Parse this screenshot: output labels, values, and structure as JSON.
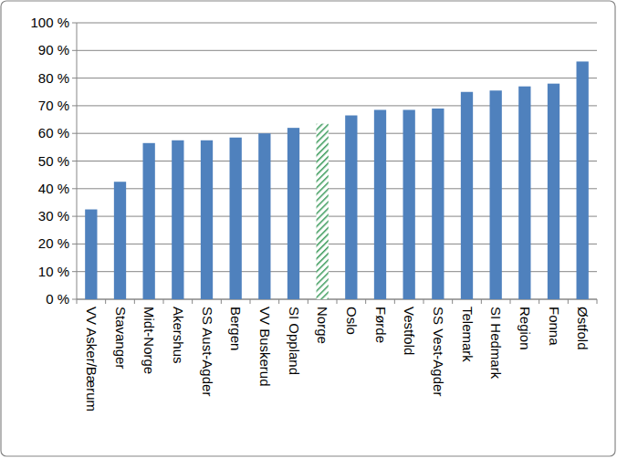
{
  "chart_data": {
    "type": "bar",
    "categories": [
      "VV Asker/Bærum",
      "Stavanger",
      "Midt-Norge",
      "Akershus",
      "SS Aust-Agder",
      "Bergen",
      "VV Buskerud",
      "SI Oppland",
      "Norge",
      "Oslo",
      "Førde",
      "Vestfold",
      "SS Vest-Agder",
      "Telemark",
      "SI Hedmark",
      "Region",
      "Fonna",
      "Østfold"
    ],
    "values": [
      32.5,
      42.5,
      56.5,
      57.5,
      57.5,
      58.5,
      60,
      62,
      63.5,
      66.5,
      68.5,
      68.5,
      69,
      75,
      75.5,
      77,
      78,
      86
    ],
    "color": "#4f81bd",
    "colors": [
      "#4f81bd",
      "#4f81bd",
      "#4f81bd",
      "#4f81bd",
      "#4f81bd",
      "#4f81bd",
      "#4f81bd",
      "#4f81bd",
      "#3a9a5a",
      "#4f81bd",
      "#4f81bd",
      "#4f81bd",
      "#4f81bd",
      "#4f81bd",
      "#4f81bd",
      "#4f81bd",
      "#4f81bd",
      "#4f81bd"
    ],
    "ylim": [
      0,
      100
    ],
    "yticks": [
      {
        "value": 0,
        "label": "0 %"
      },
      {
        "value": 10,
        "label": "10 %"
      },
      {
        "value": 20,
        "label": "20 %"
      },
      {
        "value": 30,
        "label": "30 %"
      },
      {
        "value": 40,
        "label": "40 %"
      },
      {
        "value": 50,
        "label": "50 %"
      },
      {
        "value": 60,
        "label": "60 %"
      },
      {
        "value": 70,
        "label": "70 %"
      },
      {
        "value": 80,
        "label": "80 %"
      },
      {
        "value": 90,
        "label": "90 %"
      },
      {
        "value": 100,
        "label": "100 %"
      }
    ],
    "grid": true
  }
}
